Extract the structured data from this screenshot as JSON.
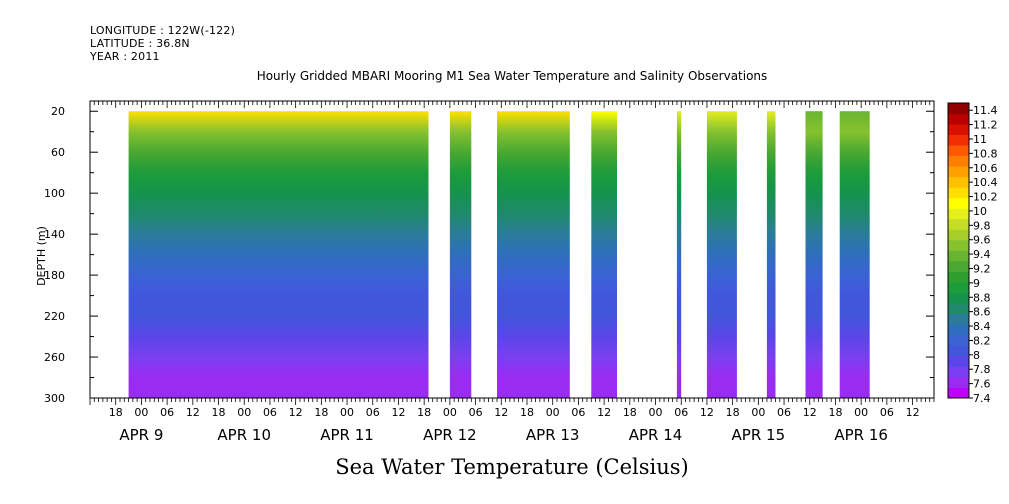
{
  "header": {
    "longitude": "LONGITUDE : 122W(-122)",
    "latitude": "LATITUDE : 36.8N",
    "year": "YEAR : 2011"
  },
  "chart_data": {
    "type": "heatmap",
    "title": "Hourly Gridded MBARI Mooring M1 Sea Water Temperature and Salinity Observations",
    "xlabel": "",
    "ylabel": "DEPTH (m)",
    "colorbar_title": "Sea Water Temperature (Celsius)",
    "y_axis": {
      "range": [
        300,
        10
      ],
      "ticks": [
        20,
        60,
        100,
        140,
        180,
        220,
        260,
        300
      ],
      "labels": [
        "20",
        "60",
        "100",
        "140",
        "180",
        "220",
        "260",
        "300"
      ]
    },
    "x_axis": {
      "range": [
        "APR 8 12:00",
        "APR 16 17:00"
      ],
      "hour_labels": [
        {
          "label": "18",
          "t": "APR 8 18:00"
        },
        {
          "label": "00",
          "t": "APR 9 00:00"
        },
        {
          "label": "06",
          "t": "APR 9 06:00"
        },
        {
          "label": "12",
          "t": "APR 9 12:00"
        },
        {
          "label": "18",
          "t": "APR 9 18:00"
        },
        {
          "label": "00",
          "t": "APR 10 00:00"
        },
        {
          "label": "06",
          "t": "APR 10 06:00"
        },
        {
          "label": "12",
          "t": "APR 10 12:00"
        },
        {
          "label": "18",
          "t": "APR 10 18:00"
        },
        {
          "label": "00",
          "t": "APR 11 00:00"
        },
        {
          "label": "06",
          "t": "APR 11 06:00"
        },
        {
          "label": "12",
          "t": "APR 11 12:00"
        },
        {
          "label": "18",
          "t": "APR 11 18:00"
        },
        {
          "label": "00",
          "t": "APR 12 00:00"
        },
        {
          "label": "06",
          "t": "APR 12 06:00"
        },
        {
          "label": "12",
          "t": "APR 12 12:00"
        },
        {
          "label": "18",
          "t": "APR 12 18:00"
        },
        {
          "label": "00",
          "t": "APR 13 00:00"
        },
        {
          "label": "06",
          "t": "APR 13 06:00"
        },
        {
          "label": "12",
          "t": "APR 13 12:00"
        },
        {
          "label": "18",
          "t": "APR 13 18:00"
        },
        {
          "label": "00",
          "t": "APR 14 00:00"
        },
        {
          "label": "06",
          "t": "APR 14 06:00"
        },
        {
          "label": "12",
          "t": "APR 14 12:00"
        },
        {
          "label": "18",
          "t": "APR 14 18:00"
        },
        {
          "label": "00",
          "t": "APR 15 00:00"
        },
        {
          "label": "06",
          "t": "APR 15 06:00"
        },
        {
          "label": "12",
          "t": "APR 15 12:00"
        },
        {
          "label": "18",
          "t": "APR 15 18:00"
        },
        {
          "label": "00",
          "t": "APR 16 00:00"
        },
        {
          "label": "06",
          "t": "APR 16 06:00"
        },
        {
          "label": "12",
          "t": "APR 16 12:00"
        }
      ],
      "date_labels": [
        {
          "label": "APR  9",
          "t": "APR 9 00:00"
        },
        {
          "label": "APR 10",
          "t": "APR 10 00:00"
        },
        {
          "label": "APR 11",
          "t": "APR 11 00:00"
        },
        {
          "label": "APR 12",
          "t": "APR 12 00:00"
        },
        {
          "label": "APR 13",
          "t": "APR 13 00:00"
        },
        {
          "label": "APR 14",
          "t": "APR 14 00:00"
        },
        {
          "label": "APR 15",
          "t": "APR 15 00:00"
        },
        {
          "label": "APR 16",
          "t": "APR 16 00:00"
        }
      ]
    },
    "data_segments": [
      {
        "start": "APR 8 21:00",
        "end": "APR 11 19:00",
        "surface_temp": 10.3
      },
      {
        "start": "APR 12 00:00",
        "end": "APR 12 05:00",
        "surface_temp": 10.3
      },
      {
        "start": "APR 12 11:00",
        "end": "APR 13 04:00",
        "surface_temp": 10.3
      },
      {
        "start": "APR 13 09:00",
        "end": "APR 13 15:00",
        "surface_temp": 10.1
      },
      {
        "start": "APR 14 05:00",
        "end": "APR 14 06:00",
        "surface_temp": 9.9
      },
      {
        "start": "APR 14 12:00",
        "end": "APR 14 19:00",
        "surface_temp": 10.0
      },
      {
        "start": "APR 15 02:00",
        "end": "APR 15 04:00",
        "surface_temp": 9.9
      },
      {
        "start": "APR 15 11:00",
        "end": "APR 15 15:00",
        "surface_temp": 9.4
      },
      {
        "start": "APR 15 19:00",
        "end": "APR 16 02:00",
        "surface_temp": 9.4
      }
    ],
    "depth_profile": [
      {
        "depth": 20,
        "temp": 10.1
      },
      {
        "depth": 40,
        "temp": 9.5
      },
      {
        "depth": 60,
        "temp": 9.2
      },
      {
        "depth": 80,
        "temp": 9.0
      },
      {
        "depth": 100,
        "temp": 8.8
      },
      {
        "depth": 120,
        "temp": 8.6
      },
      {
        "depth": 140,
        "temp": 8.5
      },
      {
        "depth": 160,
        "temp": 8.3
      },
      {
        "depth": 180,
        "temp": 8.2
      },
      {
        "depth": 200,
        "temp": 8.1
      },
      {
        "depth": 220,
        "temp": 8.0
      },
      {
        "depth": 240,
        "temp": 7.9
      },
      {
        "depth": 260,
        "temp": 7.8
      },
      {
        "depth": 280,
        "temp": 7.65
      },
      {
        "depth": 300,
        "temp": 7.55
      }
    ],
    "colorbar": {
      "range": [
        7.4,
        11.5
      ],
      "label_values": [
        11.4,
        11.2,
        11,
        10.8,
        10.6,
        10.4,
        10.2,
        10,
        9.8,
        9.6,
        9.4,
        9.2,
        9,
        8.8,
        8.6,
        8.4,
        8.2,
        8,
        7.8,
        7.6,
        7.4
      ],
      "labels": [
        "11.4",
        "11.2",
        "11",
        "10.8",
        "10.6",
        "10.4",
        "10.2",
        "10",
        "9.8",
        "9.6",
        "9.4",
        "9.2",
        "9",
        "8.8",
        "8.6",
        "8.4",
        "8.2",
        "8",
        "7.8",
        "7.6",
        "7.4"
      ],
      "colors": [
        "#c000ff",
        "#9a2cf2",
        "#7a3ff0",
        "#5a46e8",
        "#4256dc",
        "#3a63d2",
        "#2f6ebd",
        "#2a7c9a",
        "#1f8a6a",
        "#15934c",
        "#1d9c3a",
        "#2e9f2e",
        "#4aa832",
        "#69b532",
        "#86c12e",
        "#a6cf2a",
        "#c5dd26",
        "#e6ee1e",
        "#ffff00",
        "#ffe000",
        "#ffc000",
        "#ffa000",
        "#ff8000",
        "#ff5a00",
        "#f03000",
        "#d81000",
        "#b80000",
        "#900000"
      ]
    }
  }
}
